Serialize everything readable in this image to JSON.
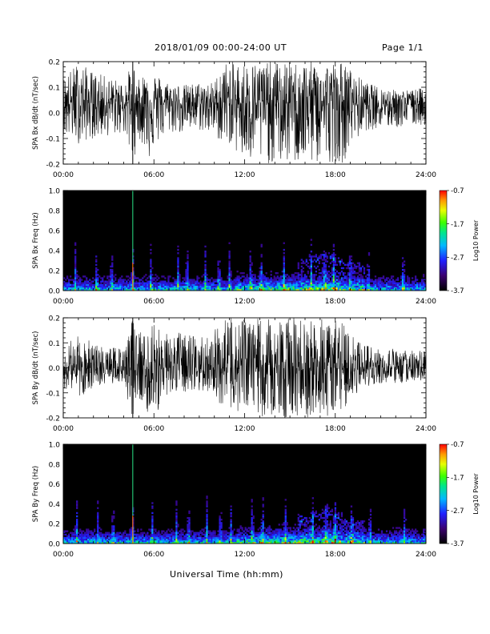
{
  "header": {
    "title": "2018/01/09  00:00-24:00 UT",
    "page": "Page 1/1"
  },
  "footer": {
    "xlabel": "Universal Time (hh:mm)"
  },
  "chart_data": [
    {
      "type": "line",
      "ylabel": "SPA Bx dB/dt (nT/sec)",
      "xlim": [
        0,
        24
      ],
      "ylim": [
        -0.2,
        0.2
      ],
      "xticks": [
        "00:00",
        "06:00",
        "12:00",
        "18:00",
        "24:00"
      ],
      "yticks": [
        "-0.2",
        "-0.1",
        "0.0",
        "0.1",
        "0.2"
      ],
      "series": [
        {
          "x": [
            0,
            1,
            2,
            3,
            4,
            4.6,
            5,
            5.8,
            6,
            7,
            8,
            9,
            10,
            10.5,
            11,
            12,
            13,
            14,
            15,
            16,
            17,
            18,
            18.5,
            19,
            20,
            21,
            22,
            23,
            24
          ],
          "y_min": [
            -0.09,
            -0.12,
            -0.1,
            -0.09,
            -0.08,
            -0.2,
            -0.1,
            -0.19,
            -0.13,
            -0.08,
            -0.08,
            -0.07,
            -0.09,
            -0.12,
            -0.12,
            -0.2,
            -0.2,
            -0.2,
            -0.2,
            -0.2,
            -0.2,
            -0.19,
            -0.2,
            -0.13,
            -0.07,
            -0.06,
            -0.06,
            -0.05,
            -0.05
          ],
          "y_max": [
            0.14,
            0.2,
            0.16,
            0.14,
            0.12,
            0.2,
            0.13,
            0.2,
            0.16,
            0.12,
            0.11,
            0.12,
            0.12,
            0.2,
            0.2,
            0.2,
            0.2,
            0.2,
            0.2,
            0.2,
            0.2,
            0.2,
            0.2,
            0.17,
            0.12,
            0.1,
            0.09,
            0.09,
            0.1
          ],
          "baseline": 0.04
        }
      ]
    },
    {
      "type": "heatmap",
      "ylabel": "SPA Bx Freq (Hz)",
      "xlim": [
        0,
        24
      ],
      "ylim": [
        0,
        1.0
      ],
      "xticks": [
        "00:00",
        "06:00",
        "12:00",
        "18:00",
        "24:00"
      ],
      "yticks": [
        "0.0",
        "0.2",
        "0.4",
        "0.6",
        "0.8",
        "1.0"
      ],
      "colorbar": {
        "label": "Log10 Power",
        "ticks": [
          "-0.7",
          "-1.7",
          "-2.7",
          "-3.7"
        ],
        "range": [
          -3.7,
          -0.7
        ]
      },
      "features": {
        "spike_times": [
          0.8,
          2.2,
          3.2,
          4.6,
          5.8,
          7.6,
          8.2,
          9.4,
          10.3,
          11.0,
          12.4,
          13.1,
          14.6,
          16.4,
          17.3,
          17.9,
          19.0,
          20.2,
          22.5
        ],
        "vertical_line_time": 4.6,
        "low_freq_band_peak_hz": 0.05,
        "activity_band": [
          [
            16,
            0.3
          ],
          [
            17.5,
            0.35
          ],
          [
            19,
            0.25
          ]
        ]
      }
    },
    {
      "type": "line",
      "ylabel": "SPA By dB/dt (nT/sec)",
      "xlim": [
        0,
        24
      ],
      "ylim": [
        -0.2,
        0.2
      ],
      "xticks": [
        "00:00",
        "06:00",
        "12:00",
        "18:00",
        "24:00"
      ],
      "yticks": [
        "-0.2",
        "-0.1",
        "0.0",
        "0.1",
        "0.2"
      ],
      "series": [
        {
          "x": [
            0,
            1,
            2,
            3,
            4,
            4.6,
            5,
            5.8,
            6,
            7,
            8,
            9,
            10,
            10.5,
            11,
            12,
            13,
            14,
            15,
            16,
            17,
            18,
            18.5,
            19,
            20,
            21,
            22,
            23,
            24
          ],
          "y_min": [
            -0.08,
            -0.12,
            -0.1,
            -0.06,
            -0.07,
            -0.2,
            -0.12,
            -0.2,
            -0.2,
            -0.1,
            -0.1,
            -0.09,
            -0.1,
            -0.16,
            -0.17,
            -0.2,
            -0.2,
            -0.2,
            -0.2,
            -0.2,
            -0.2,
            -0.2,
            -0.18,
            -0.12,
            -0.08,
            -0.07,
            -0.07,
            -0.06,
            -0.06
          ],
          "y_max": [
            0.1,
            0.13,
            0.1,
            0.08,
            0.09,
            0.2,
            0.14,
            0.2,
            0.2,
            0.14,
            0.14,
            0.12,
            0.15,
            0.2,
            0.2,
            0.2,
            0.2,
            0.2,
            0.2,
            0.2,
            0.2,
            0.2,
            0.18,
            0.13,
            0.1,
            0.08,
            0.08,
            0.07,
            0.07
          ],
          "baseline": 0.0
        }
      ]
    },
    {
      "type": "heatmap",
      "ylabel": "SPA By Freq (Hz)",
      "xlim": [
        0,
        24
      ],
      "ylim": [
        0,
        1.0
      ],
      "xticks": [
        "00:00",
        "06:00",
        "12:00",
        "18:00",
        "24:00"
      ],
      "yticks": [
        "0.0",
        "0.2",
        "0.4",
        "0.6",
        "0.8",
        "1.0"
      ],
      "colorbar": {
        "label": "Log10 Power",
        "ticks": [
          "-0.7",
          "-1.7",
          "-2.7",
          "-3.7"
        ],
        "range": [
          -3.7,
          -0.7
        ]
      },
      "features": {
        "spike_times": [
          0.9,
          2.3,
          3.3,
          4.6,
          5.9,
          7.5,
          8.3,
          9.5,
          10.4,
          11.1,
          12.5,
          13.2,
          14.7,
          16.5,
          17.4,
          18.0,
          19.1,
          20.3,
          22.6
        ],
        "vertical_line_time": 4.6,
        "low_freq_band_peak_hz": 0.05,
        "activity_band": [
          [
            16,
            0.25
          ],
          [
            17.5,
            0.33
          ],
          [
            19,
            0.22
          ]
        ]
      }
    }
  ]
}
